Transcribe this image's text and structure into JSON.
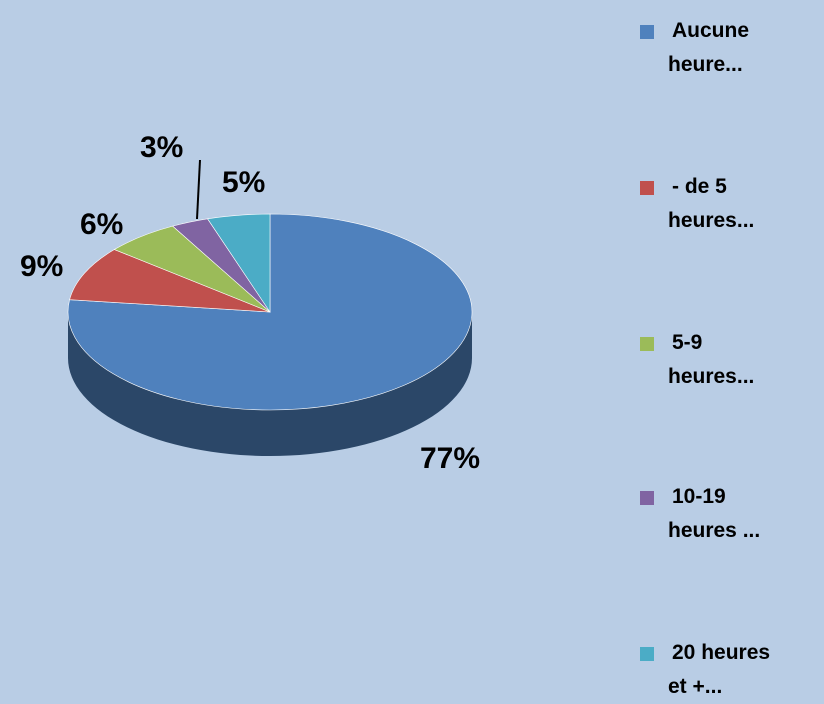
{
  "chart_data": {
    "type": "pie3d",
    "categories": [
      "Aucune heure...",
      "- de 5 heures...",
      "5-9 heures...",
      "10-19 heures ...",
      "20 heures et +..."
    ],
    "values": [
      77,
      9,
      6,
      3,
      5
    ],
    "value_labels": [
      "77%",
      "9%",
      "6%",
      "3%",
      "5%"
    ],
    "colors": [
      "#4f81bd",
      "#c0504d",
      "#9bbb59",
      "#8064a2",
      "#4bacc6"
    ],
    "legend": "right"
  }
}
